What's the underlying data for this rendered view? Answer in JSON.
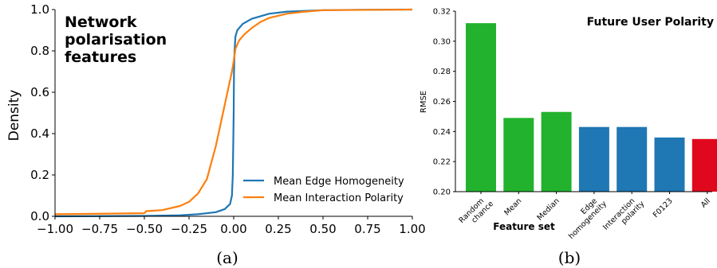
{
  "chart_data": [
    {
      "type": "line",
      "title": "Network\npolarisation\nfeatures",
      "xlabel": "",
      "ylabel": "Density",
      "xlim": [
        -1.0,
        1.0
      ],
      "ylim": [
        0.0,
        1.0
      ],
      "xticks": [
        "−1.00",
        "−0.75",
        "−0.50",
        "−0.25",
        "0.00",
        "0.25",
        "0.50",
        "0.75",
        "1.00"
      ],
      "xtick_values": [
        -1.0,
        -0.75,
        -0.5,
        -0.25,
        0.0,
        0.25,
        0.5,
        0.75,
        1.0
      ],
      "yticks": [
        "0.0",
        "0.2",
        "0.4",
        "0.6",
        "0.8",
        "1.0"
      ],
      "ytick_values": [
        0.0,
        0.2,
        0.4,
        0.6,
        0.8,
        1.0
      ],
      "legend_position": "lower-right",
      "series": [
        {
          "name": "Mean Edge Homogeneity",
          "color": "#1f77b4",
          "x": [
            -1.0,
            -0.5,
            -0.3,
            -0.2,
            -0.1,
            -0.05,
            -0.02,
            -0.01,
            -0.005,
            0.0,
            0.002,
            0.005,
            0.01,
            0.02,
            0.05,
            0.1,
            0.2,
            0.3,
            0.5,
            0.7,
            1.0
          ],
          "y": [
            0.0,
            0.002,
            0.005,
            0.01,
            0.02,
            0.035,
            0.06,
            0.1,
            0.2,
            0.5,
            0.7,
            0.8,
            0.87,
            0.9,
            0.93,
            0.955,
            0.98,
            0.99,
            0.997,
            0.999,
            1.0
          ]
        },
        {
          "name": "Mean Interaction Polarity",
          "color": "#ff7f0e",
          "x": [
            -1.0,
            -0.5,
            -0.49,
            -0.4,
            -0.3,
            -0.25,
            -0.2,
            -0.15,
            -0.1,
            -0.06,
            -0.03,
            -0.01,
            0.0,
            0.01,
            0.03,
            0.06,
            0.1,
            0.15,
            0.2,
            0.3,
            0.4,
            0.5,
            1.0
          ],
          "y": [
            0.01,
            0.015,
            0.025,
            0.03,
            0.05,
            0.07,
            0.11,
            0.18,
            0.34,
            0.5,
            0.62,
            0.7,
            0.75,
            0.81,
            0.85,
            0.88,
            0.91,
            0.94,
            0.96,
            0.98,
            0.99,
            0.997,
            1.0
          ]
        }
      ],
      "caption": "(a)"
    },
    {
      "type": "bar",
      "title": "Future User Polarity",
      "xlabel": "Feature set",
      "ylabel": "RMSE",
      "ylim": [
        0.2,
        0.32
      ],
      "yticks": [
        "0.20",
        "0.22",
        "0.24",
        "0.26",
        "0.28",
        "0.30",
        "0.32"
      ],
      "ytick_values": [
        0.2,
        0.22,
        0.24,
        0.26,
        0.28,
        0.3,
        0.32
      ],
      "categories": [
        "Random\nchance",
        "Mean",
        "Median",
        "Edge\nhomogeneity",
        "Interaction\npolarity",
        "F0123",
        "All"
      ],
      "values": [
        0.312,
        0.249,
        0.253,
        0.243,
        0.243,
        0.236,
        0.235
      ],
      "colors": [
        "#22b22e",
        "#22b22e",
        "#22b22e",
        "#1f77b4",
        "#1f77b4",
        "#1f77b4",
        "#e0081d"
      ],
      "caption": "(b)"
    }
  ]
}
